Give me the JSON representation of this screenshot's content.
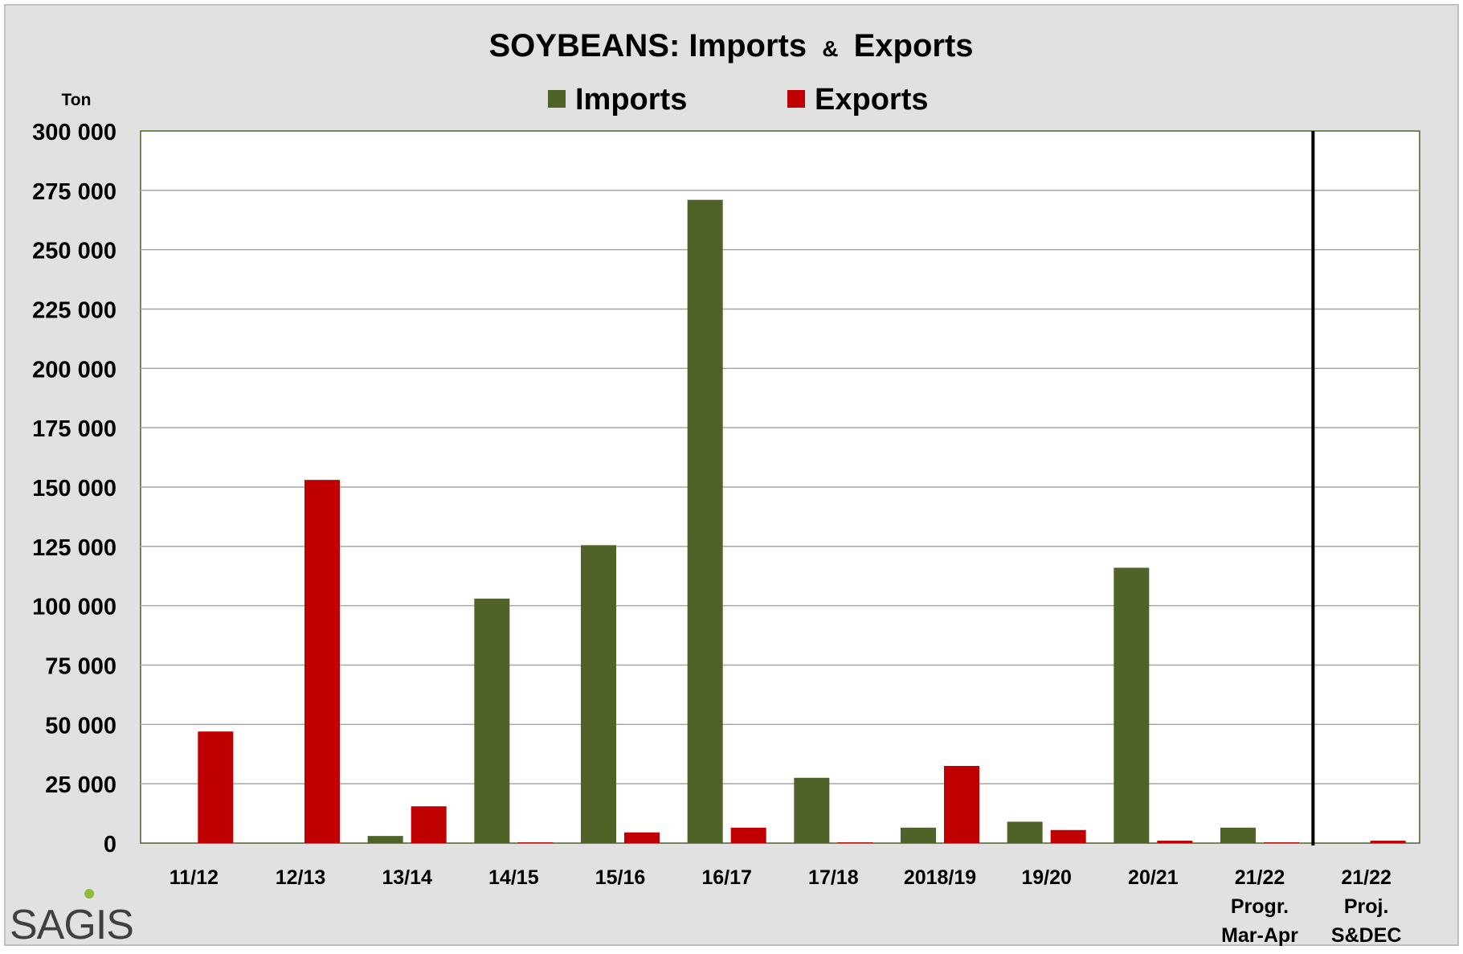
{
  "chart_data": {
    "type": "bar",
    "title": "SOYBEANS: Imports & Exports",
    "title_parts": [
      "SOYBEANS: Imports",
      "&",
      "Exports"
    ],
    "ylabel": "Ton",
    "ylim": [
      0,
      300000
    ],
    "y_ticks": [
      0,
      25000,
      50000,
      75000,
      100000,
      125000,
      150000,
      175000,
      200000,
      225000,
      250000,
      275000,
      300000
    ],
    "y_tick_labels": [
      "0",
      "25 000",
      "50 000",
      "75 000",
      "100 000",
      "125 000",
      "150 000",
      "175 000",
      "200 000",
      "225 000",
      "250 000",
      "275 000",
      "300 000"
    ],
    "categories": [
      "11/12",
      "12/13",
      "13/14",
      "14/15",
      "15/16",
      "16/17",
      "17/18",
      "2018/19",
      "19/20",
      "20/21",
      "21/22 Progr. Mar-Apr",
      "21/22 Proj. S&DEC"
    ],
    "category_lines": [
      [
        "11/12"
      ],
      [
        "12/13"
      ],
      [
        "13/14"
      ],
      [
        "14/15"
      ],
      [
        "15/16"
      ],
      [
        "16/17"
      ],
      [
        "17/18"
      ],
      [
        "2018/19"
      ],
      [
        "19/20"
      ],
      [
        "20/21"
      ],
      [
        "21/22",
        "Progr.",
        "Mar-Apr"
      ],
      [
        "21/22",
        "Proj.",
        "S&DEC"
      ]
    ],
    "series": [
      {
        "name": "Imports",
        "color": "#4f6228",
        "values": [
          0,
          0,
          3000,
          103000,
          125500,
          271000,
          27500,
          6500,
          9000,
          116000,
          6500,
          0
        ]
      },
      {
        "name": "Exports",
        "color": "#c00000",
        "values": [
          47000,
          153000,
          15500,
          300,
          4500,
          6500,
          300,
          32500,
          5500,
          1000,
          300,
          1000
        ]
      }
    ],
    "legend_position": "top-center",
    "grid": true,
    "divider_before_index": 11
  },
  "logo": {
    "text": "SAGIS"
  },
  "colors": {
    "background": "#e1e1e1",
    "plot_background": "#ffffff",
    "gridline": "#a6a6a6",
    "frame": "#4f6228"
  }
}
